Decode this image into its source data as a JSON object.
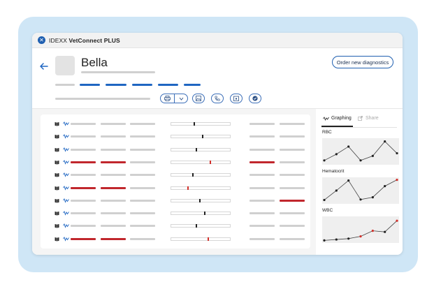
{
  "app": {
    "brand_prefix": "IDEXX",
    "brand_name": "VetConnect PLUS"
  },
  "patient": {
    "name": "Bella"
  },
  "actions": {
    "order_button": "Order new diagnostics"
  },
  "toolbar": {
    "icons": [
      "print-icon",
      "chevron-down-icon",
      "image-icon",
      "phone-icon",
      "calendar-icon",
      "check-icon"
    ]
  },
  "results": {
    "rows": [
      {
        "a": "normal",
        "b": "normal",
        "c": "normal",
        "range_pos": 0.38,
        "range_flag": false,
        "d": "normal",
        "e": "normal"
      },
      {
        "a": "normal",
        "b": "normal",
        "c": "normal",
        "range_pos": 0.52,
        "range_flag": false,
        "d": "normal",
        "e": "normal"
      },
      {
        "a": "normal",
        "b": "normal",
        "c": "normal",
        "range_pos": 0.42,
        "range_flag": false,
        "d": "normal",
        "e": "normal"
      },
      {
        "a": "high",
        "b": "high",
        "c": "normal",
        "range_pos": 0.66,
        "range_flag": true,
        "d": "high",
        "e": "normal"
      },
      {
        "a": "normal",
        "b": "normal",
        "c": "normal",
        "range_pos": 0.36,
        "range_flag": false,
        "d": "normal",
        "e": "normal"
      },
      {
        "a": "high",
        "b": "high",
        "c": "normal",
        "range_pos": 0.27,
        "range_flag": true,
        "d": "normal",
        "e": "normal"
      },
      {
        "a": "normal",
        "b": "normal",
        "c": "normal",
        "range_pos": 0.48,
        "range_flag": false,
        "d": "normal",
        "e": "high"
      },
      {
        "a": "normal",
        "b": "normal",
        "c": "normal",
        "range_pos": 0.56,
        "range_flag": false,
        "d": "normal",
        "e": "normal"
      },
      {
        "a": "normal",
        "b": "normal",
        "c": "normal",
        "range_pos": 0.42,
        "range_flag": false,
        "d": "normal",
        "e": "normal"
      },
      {
        "a": "high",
        "b": "high",
        "c": "normal",
        "range_pos": 0.62,
        "range_flag": true,
        "d": "normal",
        "e": "normal"
      }
    ]
  },
  "panel": {
    "tabs": [
      {
        "label": "Graphing",
        "active": true
      },
      {
        "label": "Share",
        "active": false
      }
    ],
    "charts": [
      {
        "label": "RBC",
        "values": [
          0.1,
          0.38,
          0.72,
          0.1,
          0.3,
          0.95,
          0.42
        ],
        "flags": [
          false,
          false,
          false,
          false,
          false,
          false,
          false
        ]
      },
      {
        "label": "Hematocrit",
        "values": [
          0.08,
          0.5,
          0.95,
          0.1,
          0.2,
          0.7,
          0.98
        ],
        "flags": [
          false,
          false,
          false,
          false,
          false,
          false,
          true
        ]
      },
      {
        "label": "WBC",
        "values": [
          0.02,
          0.06,
          0.1,
          0.2,
          0.45,
          0.4,
          0.9
        ],
        "flags": [
          false,
          false,
          false,
          true,
          true,
          false,
          true
        ]
      }
    ]
  },
  "colors": {
    "accent": "#1f66c2",
    "alert": "#c1272d",
    "frame": "#cfe6f6"
  }
}
